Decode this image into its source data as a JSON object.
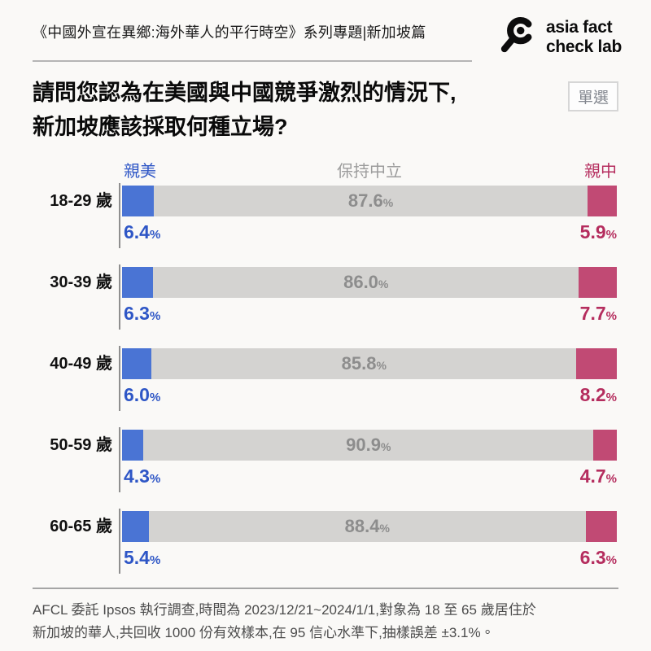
{
  "header": {
    "series_title": "《中國外宣在異鄉:海外華人的平行時空》系列專題|新加坡篇",
    "logo_line1": "asia fact",
    "logo_line2": "check lab"
  },
  "question": {
    "line1": "請問您認為在美國與中國競爭激烈的情況下,",
    "line2": "新加坡應該採取何種立場?",
    "badge": "單選"
  },
  "chart_data": {
    "type": "bar",
    "orientation": "horizontal-stacked",
    "title": "請問您認為在美國與中國競爭激烈的情況下,新加坡應該採取何種立場?",
    "xlim": [
      0,
      100
    ],
    "legend_position": "top",
    "percent_sign": "%",
    "legend": [
      {
        "label": "親美",
        "color": "#4a74d4",
        "text_color": "#2e56c6"
      },
      {
        "label": "保持中立",
        "color": "#d4d3d1",
        "text_color": "#9c9c9c"
      },
      {
        "label": "親中",
        "color": "#c14a74",
        "text_color": "#b52d5e"
      }
    ],
    "categories": [
      "18-29 歲",
      "30-39 歲",
      "40-49 歲",
      "50-59 歲",
      "60-65 歲"
    ],
    "series": [
      {
        "name": "親美",
        "values": [
          6.4,
          6.3,
          6.0,
          4.3,
          5.4
        ]
      },
      {
        "name": "保持中立",
        "values": [
          87.6,
          86.0,
          85.8,
          90.9,
          88.4
        ]
      },
      {
        "name": "親中",
        "values": [
          5.9,
          7.7,
          8.2,
          4.7,
          6.3
        ]
      }
    ],
    "rows": [
      {
        "age": "18-29 歲",
        "pro_us": "6.4",
        "neutral": "87.6",
        "pro_china": "5.9"
      },
      {
        "age": "30-39 歲",
        "pro_us": "6.3",
        "neutral": "86.0",
        "pro_china": "7.7"
      },
      {
        "age": "40-49 歲",
        "pro_us": "6.0",
        "neutral": "85.8",
        "pro_china": "8.2"
      },
      {
        "age": "50-59 歲",
        "pro_us": "4.3",
        "neutral": "90.9",
        "pro_china": "4.7"
      },
      {
        "age": "60-65 歲",
        "pro_us": "5.4",
        "neutral": "88.4",
        "pro_china": "6.3"
      }
    ]
  },
  "footer": {
    "line1": "AFCL 委託 Ipsos 執行調查,時間為 2023/12/21~2024/1/1,對象為 18 至 65 歲居住於",
    "line2": "新加坡的華人,共回收 1000 份有效樣本,在 95 信心水準下,抽樣誤差 ±3.1%。"
  }
}
